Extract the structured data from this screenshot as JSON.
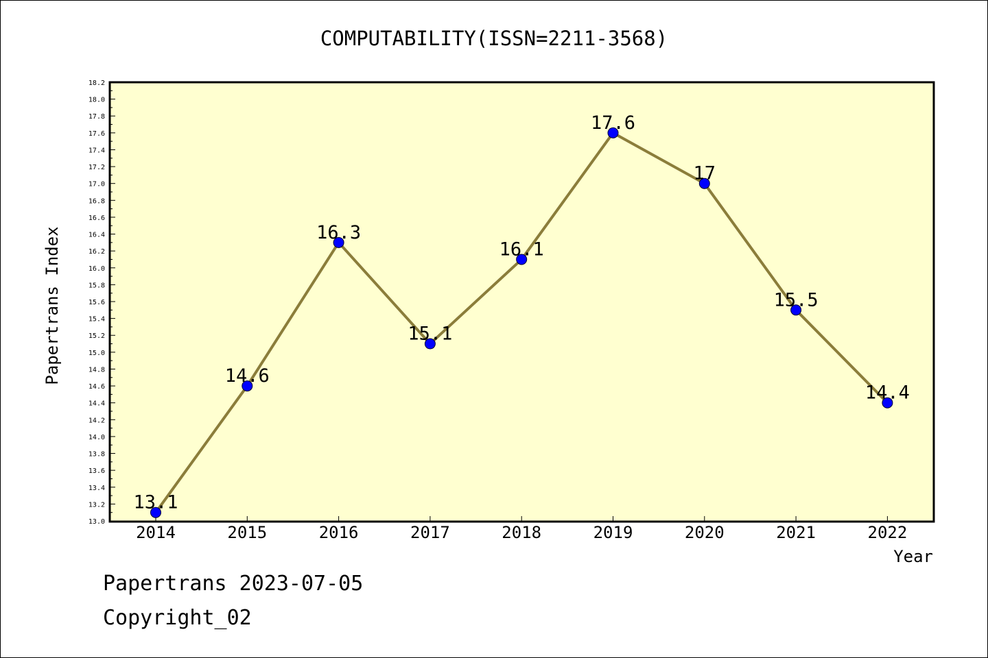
{
  "chart_data": {
    "type": "line",
    "title": "COMPUTABILITY(ISSN=2211-3568)",
    "xlabel": "Year",
    "ylabel": "Papertrans Index",
    "categories": [
      "2014",
      "2015",
      "2016",
      "2017",
      "2018",
      "2019",
      "2020",
      "2021",
      "2022"
    ],
    "series": [
      {
        "values": [
          13.1,
          14.6,
          16.3,
          15.1,
          16.1,
          17.6,
          17.0,
          15.5,
          14.4
        ],
        "labels": [
          "13.1",
          "14.6",
          "16.3",
          "15.1",
          "16.1",
          "17.6",
          "17",
          "15.5",
          "14.4"
        ],
        "line_color": "#8b7d3a",
        "marker_color": "#0000ff"
      }
    ],
    "ylim": [
      13.0,
      18.2
    ],
    "ytick_labels": [
      "13.0",
      "13.2",
      "13.4",
      "13.6",
      "13.8",
      "14.0",
      "14.2",
      "14.4",
      "14.6",
      "14.8",
      "15.0",
      "15.2",
      "15.4",
      "15.6",
      "15.8",
      "16.0",
      "16.2",
      "16.4",
      "16.6",
      "16.8",
      "17.0",
      "17.2",
      "17.4",
      "17.6",
      "17.8",
      "18.0",
      "18.2"
    ],
    "plot_background": "#ffffd0",
    "grid": false
  },
  "footer": {
    "line1": "Papertrans 2023-07-05",
    "line2": "Copyright_02"
  }
}
